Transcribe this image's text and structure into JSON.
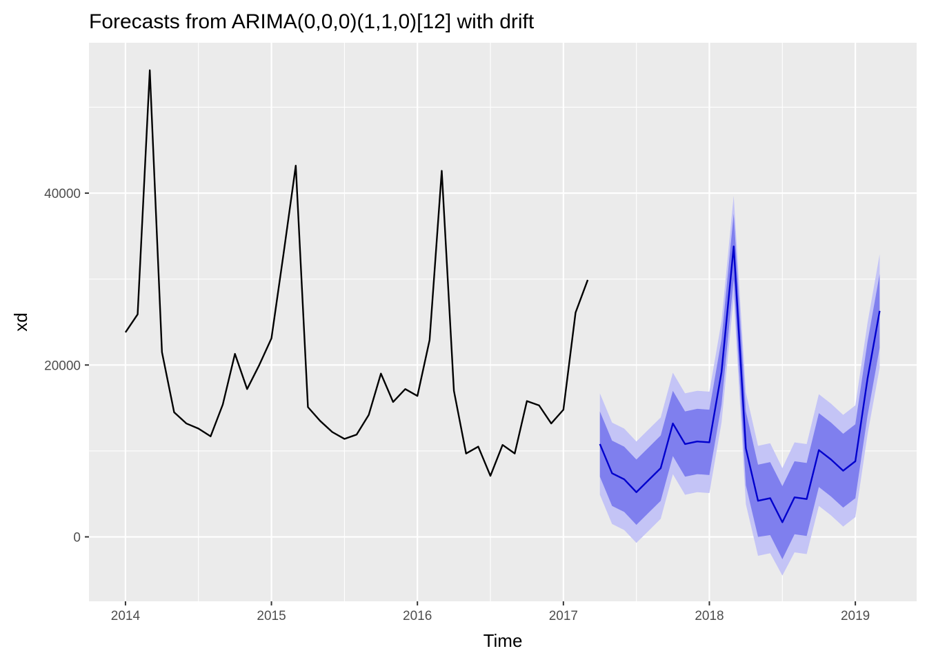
{
  "chart_data": {
    "type": "line",
    "title": "Forecasts from ARIMA(0,0,0)(1,1,0)[12] with drift",
    "xlabel": "Time",
    "ylabel": "xd",
    "xlim": [
      2013.75,
      2019.42
    ],
    "ylim": [
      -7500,
      57500
    ],
    "x_ticks": [
      2014,
      2015,
      2016,
      2017,
      2018,
      2019
    ],
    "x_tick_labels": [
      "2014",
      "2015",
      "2016",
      "2017",
      "2018",
      "2019"
    ],
    "y_ticks": [
      0,
      20000,
      40000
    ],
    "y_tick_labels": [
      "0",
      "20000",
      "40000"
    ],
    "grid": true,
    "legend": "none",
    "colors": {
      "panel": "#ebebeb",
      "grid": "#ffffff",
      "history": "#000000",
      "forecast": "#0000cd",
      "band80": "#7f7fee",
      "band95": "#c4c4f6"
    },
    "history": {
      "start": 2014.0,
      "frequency": 12,
      "values": [
        23800,
        25900,
        54300,
        21500,
        14500,
        13200,
        12600,
        11700,
        15400,
        21300,
        17200,
        20000,
        23100,
        33000,
        43200,
        15100,
        13500,
        12200,
        11400,
        11900,
        14200,
        19000,
        15700,
        17200,
        16400,
        22900,
        42600,
        17000,
        9700,
        10500,
        7100,
        10700,
        9700,
        15800,
        15300,
        13200,
        14800,
        26100,
        29900
      ]
    },
    "forecast": {
      "start": 2017.25,
      "frequency": 12,
      "mean": [
        10800,
        7400,
        6700,
        5200,
        6600,
        8000,
        13200,
        10800,
        11100,
        11000,
        19200,
        33800,
        10300,
        4200,
        4500,
        1700,
        4600,
        4400,
        10100,
        9000,
        7700,
        8800,
        18400,
        26300
      ],
      "lo80": [
        7000,
        3600,
        2900,
        1400,
        2800,
        4200,
        9400,
        7000,
        7300,
        7200,
        15400,
        30000,
        6000,
        0,
        200,
        -2600,
        300,
        100,
        5800,
        4700,
        3400,
        4500,
        14100,
        22000
      ],
      "hi80": [
        14600,
        11200,
        10500,
        9000,
        10400,
        11800,
        17000,
        14600,
        14900,
        14800,
        23000,
        37600,
        14600,
        8400,
        8700,
        5900,
        8800,
        8600,
        14400,
        13300,
        12000,
        13100,
        22700,
        30600
      ],
      "lo95": [
        4900,
        1500,
        800,
        -700,
        700,
        2100,
        7300,
        4900,
        5200,
        5100,
        13300,
        27900,
        3800,
        -2200,
        -1900,
        -4500,
        -1800,
        -2000,
        3600,
        2500,
        1200,
        2300,
        11900,
        19700
      ],
      "hi95": [
        16700,
        13300,
        12600,
        11100,
        12500,
        13900,
        19100,
        16700,
        17000,
        16900,
        25100,
        39700,
        16800,
        10600,
        10900,
        8000,
        11000,
        10800,
        16600,
        15500,
        14200,
        15300,
        24900,
        32900
      ]
    }
  }
}
